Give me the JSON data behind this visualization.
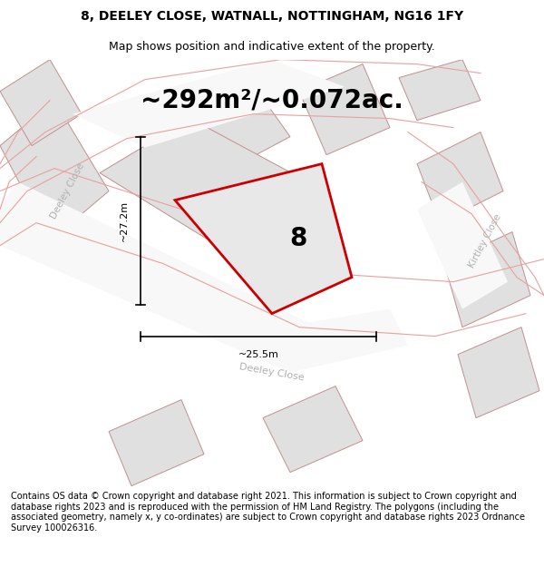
{
  "title": "8, DEELEY CLOSE, WATNALL, NOTTINGHAM, NG16 1FY",
  "subtitle": "Map shows position and indicative extent of the property.",
  "area_text": "~292m²/~0.072ac.",
  "dim_width": "~25.5m",
  "dim_height": "~27.2m",
  "plot_number": "8",
  "footer": "Contains OS data © Crown copyright and database right 2021. This information is subject to Crown copyright and database rights 2023 and is reproduced with the permission of HM Land Registry. The polygons (including the associated geometry, namely x, y co-ordinates) are subject to Crown copyright and database rights 2023 Ordnance Survey 100026316.",
  "bg_color": "#ffffff",
  "map_bg": "#f0f0f0",
  "plot_fill": "#e8e8e8",
  "plot_edge": "#cc0000",
  "other_plot_fill": "#e0e0e0",
  "other_plot_edge": "#c09090",
  "road_label_color": "#b0b0b0",
  "pink": "#e8a0a0",
  "title_fontsize": 10,
  "subtitle_fontsize": 9,
  "area_fontsize": 20,
  "plot_num_fontsize": 20,
  "dim_fontsize": 8,
  "street_fontsize": 8,
  "footer_fontsize": 7
}
